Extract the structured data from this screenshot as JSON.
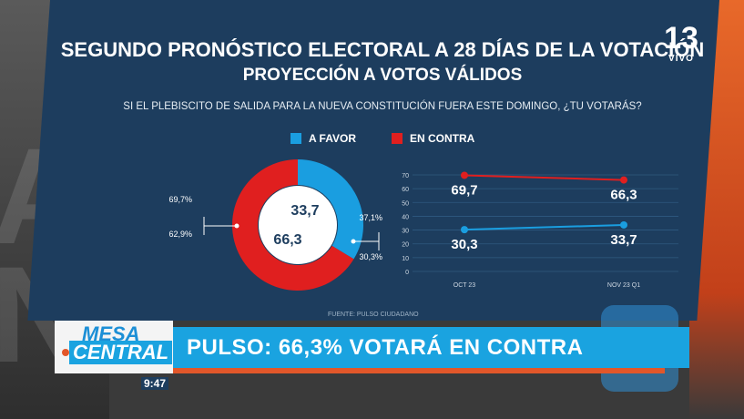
{
  "header": {
    "title": "SEGUNDO PRONÓSTICO ELECTORAL A 28 DÍAS DE LA VOTACIÓN",
    "subtitle": "PROYECCIÓN A VOTOS VÁLIDOS",
    "question": "SI EL PLEBISCITO DE SALIDA PARA LA NUEVA CONSTITUCIÓN FUERA ESTE DOMINGO, ¿TU VOTARÁS?"
  },
  "channel": {
    "number": "13",
    "live": "VIVO"
  },
  "legend": [
    {
      "label": "A FAVOR",
      "color": "#1a9ee0"
    },
    {
      "label": "EN CONTRA",
      "color": "#e01f1f"
    }
  ],
  "chart_data": [
    {
      "type": "pie",
      "donut": true,
      "slices": [
        {
          "name": "A FAVOR",
          "value": 33.7,
          "label": "33,7",
          "range_labels": [
            "37,1%",
            "30,3%"
          ]
        },
        {
          "name": "EN CONTRA",
          "value": 66.3,
          "label": "66,3",
          "range_labels": [
            "69,7%",
            "62,9%"
          ]
        }
      ]
    },
    {
      "type": "line",
      "categories": [
        "OCT 23",
        "NOV 23 Q1"
      ],
      "y_ticks": [
        "0",
        "10",
        "20",
        "30",
        "40",
        "50",
        "60",
        "70"
      ],
      "ylim": [
        0,
        70
      ],
      "grid": true,
      "series": [
        {
          "name": "EN CONTRA",
          "values": [
            69.7,
            66.3
          ],
          "labels": [
            "69,7",
            "66,3"
          ],
          "color": "#e01f1f"
        },
        {
          "name": "A FAVOR",
          "values": [
            30.3,
            33.7
          ],
          "labels": [
            "30,3",
            "33,7"
          ],
          "color": "#1a9ee0"
        }
      ]
    }
  ],
  "source": "FUENTE: PULSO CIUDADANO",
  "ticker": {
    "program_line1": "MESA",
    "program_line2": "CENTRAL",
    "headline": "PULSO: 66,3% VOTARÁ EN CONTRA",
    "time": "9:47"
  },
  "background_letters": "A\nN"
}
